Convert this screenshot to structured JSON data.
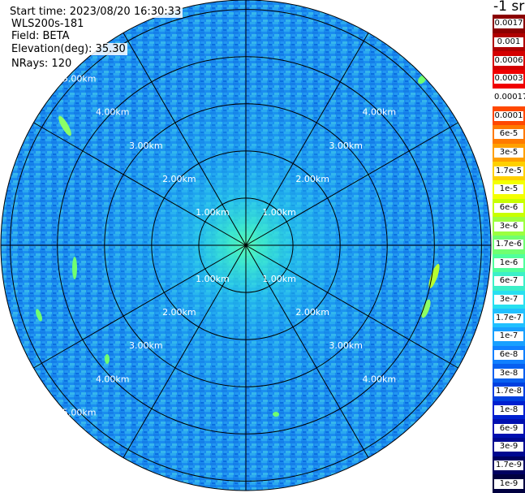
{
  "header": {
    "start_time": "Start time: 2023/08/20 16:30:33",
    "instrument": "WLS200s-181",
    "field": "Field: BETA",
    "elevation": "Elevation(deg): 35.30",
    "nrays": "NRays: 120"
  },
  "colorbar": {
    "title": "-1 sr",
    "labels": [
      "0.0017",
      "0.001",
      "0.0006",
      "0.0003",
      "0.00017",
      "0.0001",
      "6e-5",
      "3e-5",
      "1.7e-5",
      "1e-5",
      "6e-6",
      "3e-6",
      "1.7e-6",
      "1e-6",
      "6e-7",
      "3e-7",
      "1.7e-7",
      "1e-7",
      "6e-8",
      "3e-8",
      "1.7e-8",
      "1e-8",
      "6e-9",
      "3e-9",
      "1.7e-9",
      "1e-9"
    ],
    "colors": [
      "#8b0000",
      "#b00000",
      "#d40000",
      "#f00000",
      "#ffffff",
      "#ff4800",
      "#ff7a00",
      "#ffa000",
      "#ffd000",
      "#f4ff00",
      "#c8ff00",
      "#9cff40",
      "#70ff70",
      "#50ff9c",
      "#3cf0c8",
      "#28e0f0",
      "#20c0ff",
      "#18a0ff",
      "#1080ff",
      "#0860f0",
      "#0040e0",
      "#0020d0",
      "#0010b0",
      "#000890",
      "#000060",
      "#000040"
    ]
  },
  "chart_data": {
    "type": "heatmap",
    "projection": "polar (PPI scan)",
    "field": "BETA",
    "units": "-1 sr",
    "elevation_deg": 35.3,
    "n_rays": 120,
    "range_rings_km": [
      1,
      2,
      3,
      4,
      5
    ],
    "ring_labels": [
      "1.00km",
      "2.00km",
      "3.00km",
      "4.00km",
      "5.00km"
    ],
    "spokes_deg": [
      0,
      30,
      60,
      90,
      120,
      150,
      180,
      210,
      240,
      270,
      300,
      330
    ],
    "max_range_km": 5.2,
    "background_level": "1e-7",
    "values_by_range": [
      {
        "range_km": 0.5,
        "beta": "1e-6"
      },
      {
        "range_km": 1.0,
        "beta": "6e-7"
      },
      {
        "range_km": 2.0,
        "beta": "3e-7"
      },
      {
        "range_km": 3.0,
        "beta": "1.7e-7"
      },
      {
        "range_km": 4.0,
        "beta": "1e-7"
      },
      {
        "range_km": 5.0,
        "beta": "6e-8"
      }
    ]
  }
}
